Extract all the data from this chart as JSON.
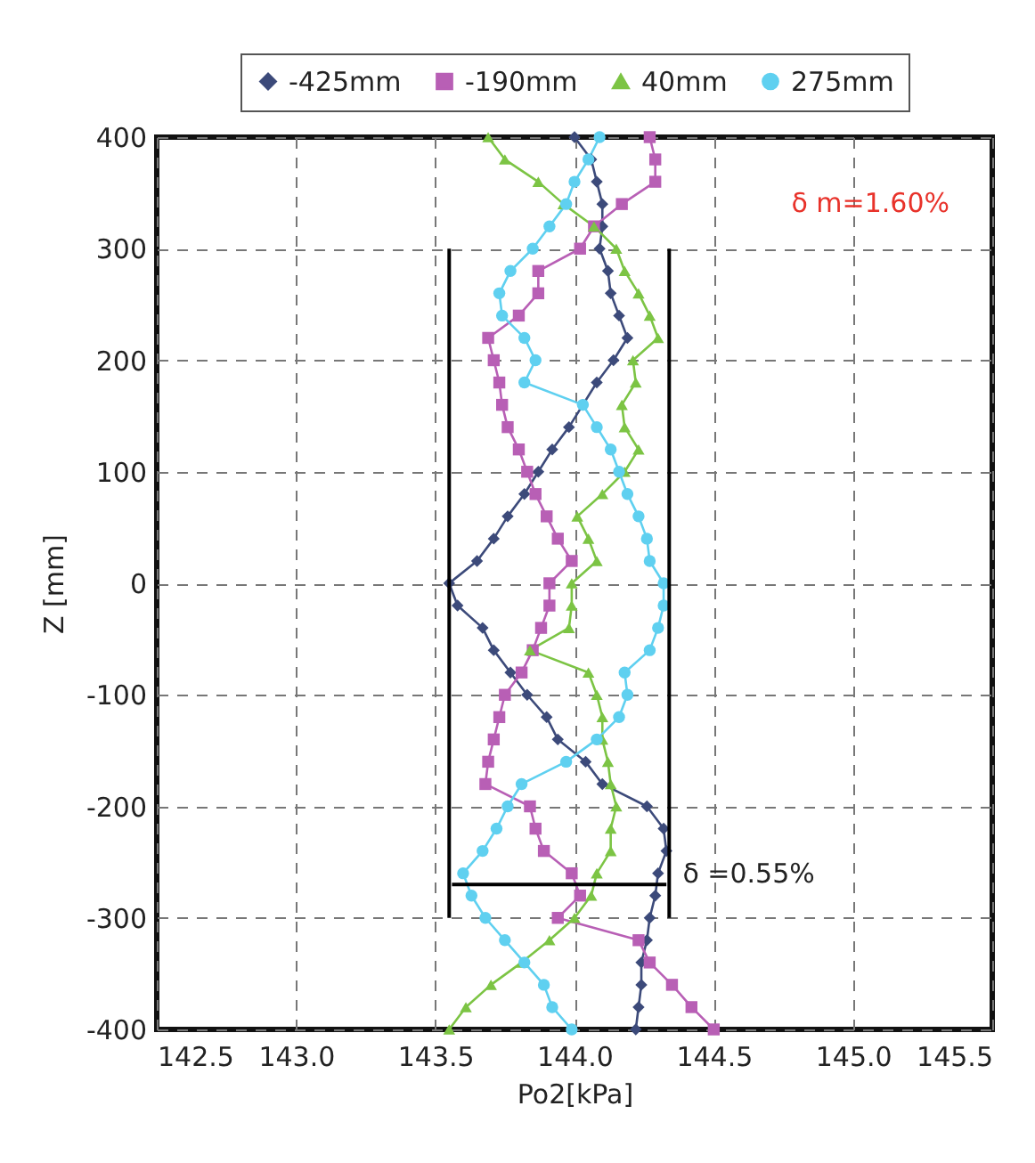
{
  "chart_data": {
    "type": "line",
    "xlabel": "Po2[kPa]",
    "ylabel": "Z [mm]",
    "xlim": [
      142.5,
      145.5
    ],
    "xticks": [
      142.5,
      {
        "value": 143,
        "label": "143.0"
      },
      143.5,
      {
        "value": 144,
        "label": "144.0"
      },
      144.5,
      {
        "value": 145,
        "label": "145.0"
      },
      145.5
    ],
    "ylim": [
      -400,
      400
    ],
    "yticks": [
      -400,
      -300,
      -200,
      -100,
      0,
      100,
      200,
      300,
      400
    ],
    "grid": true,
    "legend": "top",
    "line_style": "solid",
    "annotations": [
      "δ m=1.60%",
      {
        "text": "δ =0.55%",
        "x": 144.35,
        "y": -270
      }
    ],
    "series": [
      {
        "name": "-425mm",
        "color": "#3c4a7a",
        "marker": "diamond",
        "x": [
          144.0,
          144.06,
          144.08,
          144.1,
          144.1,
          144.09,
          144.12,
          144.13,
          144.16,
          144.19,
          144.14,
          144.08,
          144.03,
          143.98,
          143.92,
          143.87,
          143.82,
          143.76,
          143.71,
          143.65,
          143.55,
          143.58,
          143.67,
          143.71,
          143.77,
          143.83,
          143.9,
          143.94,
          144.04,
          144.1,
          144.26,
          144.32,
          144.33,
          144.3,
          144.29,
          144.27,
          144.26,
          144.24,
          144.24,
          144.23,
          144.22
        ],
        "values": [
          400,
          380,
          360,
          340,
          320,
          300,
          280,
          260,
          240,
          220,
          200,
          180,
          160,
          140,
          120,
          100,
          80,
          60,
          40,
          20,
          0,
          -20,
          -40,
          -60,
          -80,
          -100,
          -120,
          -140,
          -160,
          -180,
          -200,
          -220,
          -240,
          -260,
          -280,
          -300,
          -320,
          -340,
          -360,
          -380,
          -400
        ]
      },
      {
        "name": "-190mm",
        "color": "#b85fb5",
        "marker": "square",
        "x": [
          144.27,
          144.29,
          144.29,
          144.17,
          144.07,
          144.02,
          143.87,
          143.87,
          143.8,
          143.69,
          143.71,
          143.73,
          143.74,
          143.76,
          143.8,
          143.83,
          143.86,
          143.9,
          143.94,
          143.99,
          143.91,
          143.91,
          143.88,
          143.85,
          143.81,
          143.75,
          143.73,
          143.71,
          143.69,
          143.68,
          143.84,
          143.86,
          143.89,
          143.99,
          144.02,
          143.94,
          144.23,
          144.27,
          144.35,
          144.42,
          144.5
        ],
        "values": [
          400,
          380,
          360,
          340,
          320,
          300,
          280,
          260,
          240,
          220,
          200,
          180,
          160,
          140,
          120,
          100,
          80,
          60,
          40,
          20,
          0,
          -20,
          -40,
          -60,
          -80,
          -100,
          -120,
          -140,
          -160,
          -180,
          -200,
          -220,
          -240,
          -260,
          -280,
          -300,
          -320,
          -340,
          -360,
          -380,
          -400
        ]
      },
      {
        "name": "40mm",
        "color": "#7cc444",
        "marker": "triangle",
        "x": [
          143.69,
          143.75,
          143.87,
          143.96,
          144.07,
          144.15,
          144.18,
          144.23,
          144.27,
          144.3,
          144.21,
          144.22,
          144.17,
          144.18,
          144.23,
          144.18,
          144.1,
          144.01,
          144.05,
          144.08,
          143.99,
          143.99,
          143.98,
          143.84,
          144.05,
          144.08,
          144.1,
          144.1,
          144.12,
          144.13,
          144.15,
          144.13,
          144.13,
          144.08,
          144.06,
          144.0,
          143.91,
          143.81,
          143.7,
          143.61,
          143.55
        ],
        "values": [
          400,
          380,
          360,
          340,
          320,
          300,
          280,
          260,
          240,
          220,
          200,
          180,
          160,
          140,
          120,
          100,
          80,
          60,
          40,
          20,
          0,
          -20,
          -40,
          -60,
          -80,
          -100,
          -120,
          -140,
          -160,
          -180,
          -200,
          -220,
          -240,
          -260,
          -280,
          -300,
          -320,
          -340,
          -360,
          -380,
          -400
        ]
      },
      {
        "name": "275mm",
        "color": "#5fd0f0",
        "marker": "circle",
        "x": [
          144.09,
          144.05,
          144.0,
          143.97,
          143.91,
          143.85,
          143.77,
          143.73,
          143.74,
          143.82,
          143.86,
          143.82,
          144.03,
          144.08,
          144.13,
          144.16,
          144.19,
          144.23,
          144.26,
          144.27,
          144.32,
          144.32,
          144.3,
          144.27,
          144.18,
          144.19,
          144.16,
          144.08,
          143.97,
          143.81,
          143.76,
          143.72,
          143.67,
          143.6,
          143.63,
          143.68,
          143.75,
          143.82,
          143.89,
          143.92,
          143.99
        ],
        "values": [
          400,
          380,
          360,
          340,
          320,
          300,
          280,
          260,
          240,
          220,
          200,
          180,
          160,
          140,
          120,
          100,
          80,
          60,
          40,
          20,
          0,
          -20,
          -40,
          -60,
          -80,
          -100,
          -120,
          -140,
          -160,
          -180,
          -200,
          -220,
          -240,
          -260,
          -280,
          -300,
          -320,
          -340,
          -360,
          -380,
          -400
        ]
      },
      {
        "type": "line",
        "color": "#000000",
        "marker": "none",
        "x": [
          143.55,
          143.55
        ],
        "values": [
          -300,
          300
        ]
      },
      {
        "type": "line",
        "color": "#000000",
        "marker": "none",
        "x": [
          144.34,
          144.34
        ],
        "values": [
          -300,
          300
        ]
      },
      {
        "type": "line",
        "color": "#000000",
        "marker": "none",
        "x": [
          144.33,
          143.56
        ],
        "values": [
          -270,
          -270
        ]
      }
    ]
  }
}
